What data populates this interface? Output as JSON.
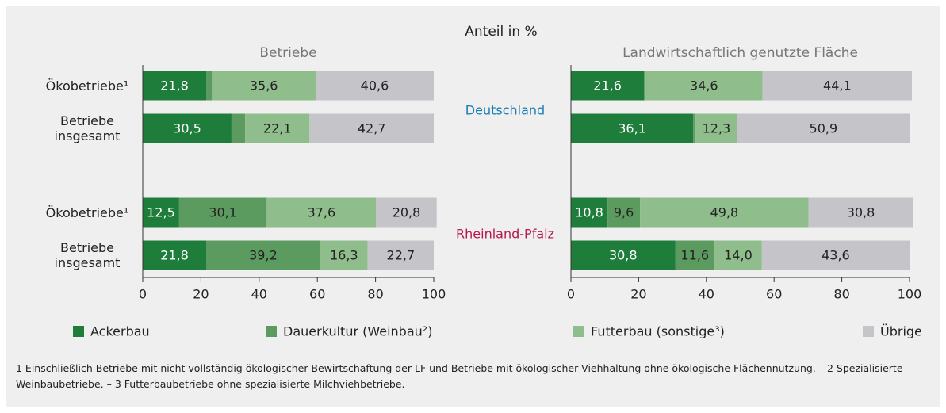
{
  "chart_data": {
    "type": "bar",
    "orientation": "horizontal",
    "stacked": true,
    "title": "Anteil in %",
    "categories": [
      "Ökobetriebe¹",
      "Betriebe insgesamt",
      "Ökobetriebe¹",
      "Betriebe insgesamt"
    ],
    "groups": [
      {
        "name": "Deutschland",
        "color": "#1a7db3"
      },
      {
        "name": "Rheinland-Pfalz",
        "color": "#b8174c"
      }
    ],
    "series": [
      {
        "name": "Ackerbau",
        "color": "#1e7d3a"
      },
      {
        "name": "Dauerkultur (Weinbau²)",
        "color": "#5c9b5f"
      },
      {
        "name": "Futterbau (sonstige³)",
        "color": "#8fbd8c"
      },
      {
        "name": "Übrige",
        "color": "#c5c5c9"
      }
    ],
    "panels": [
      {
        "title": "Betriebe",
        "values": [
          [
            21.8,
            30.5,
            12.5,
            21.8
          ],
          [
            2.0,
            4.7,
            30.1,
            39.2
          ],
          [
            35.6,
            22.1,
            37.6,
            16.3
          ],
          [
            40.6,
            42.7,
            20.8,
            22.7
          ]
        ],
        "value_labels": [
          [
            "21,8",
            "30,5",
            "12,5",
            "21,8"
          ],
          [
            null,
            null,
            "30,1",
            "39,2"
          ],
          [
            "35,6",
            "22,1",
            "37,6",
            "16,3"
          ],
          [
            "40,6",
            "42,7",
            "20,8",
            "22,7"
          ]
        ]
      },
      {
        "title": "Landwirtschaftlich genutzte Fläche",
        "values": [
          [
            21.6,
            36.1,
            10.8,
            30.8
          ],
          [
            0.4,
            0.7,
            9.6,
            11.6
          ],
          [
            34.6,
            12.3,
            49.8,
            14.0
          ],
          [
            44.1,
            50.9,
            30.8,
            43.6
          ]
        ],
        "value_labels": [
          [
            "21,6",
            "36,1",
            "10,8",
            "30,8"
          ],
          [
            null,
            null,
            "9,6",
            "11,6"
          ],
          [
            "34,6",
            "12,3",
            "49,8",
            "14,0"
          ],
          [
            "44,1",
            "50,9",
            "30,8",
            "43,6"
          ]
        ]
      }
    ],
    "xlim": [
      0,
      100
    ],
    "xticks": [
      0,
      20,
      40,
      60,
      80,
      100
    ],
    "footnote": "1 Einschließlich Betriebe mit nicht vollständig ökologischer Bewirtschaftung der LF und Betriebe mit ökologischer Viehhaltung ohne ökologische Flächennutzung. – 2 Spezialisierte Weinbaubetriebe. – 3 Futterbaubetriebe ohne spezialisierte Milchviehbetriebe."
  }
}
